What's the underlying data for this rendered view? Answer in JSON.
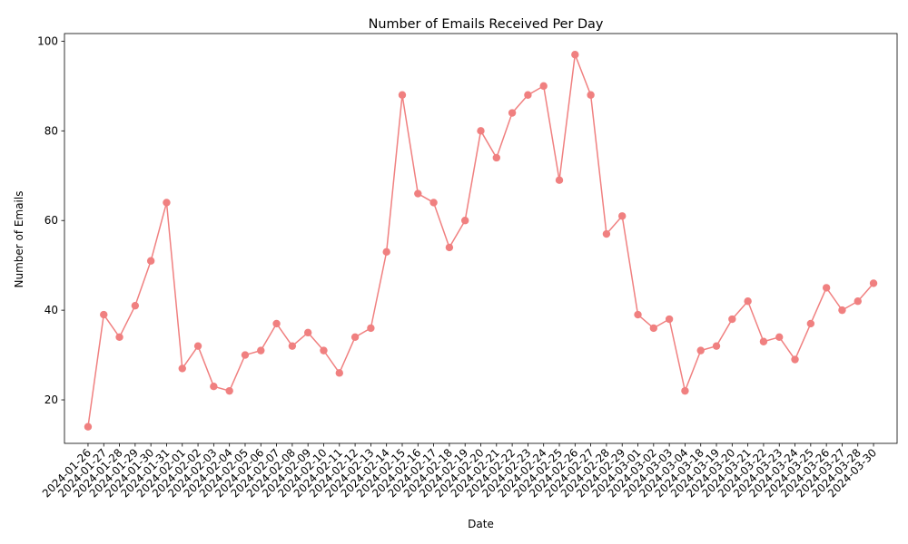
{
  "chart_data": {
    "type": "line",
    "title": "Number of Emails Received Per Day",
    "xlabel": "Date",
    "ylabel": "Number of Emails",
    "ylim": [
      10.3,
      101.7
    ],
    "yticks": [
      20,
      40,
      60,
      80,
      100
    ],
    "grid": false,
    "color": "#F08080",
    "categories": [
      "2024-01-26",
      "2024-01-27",
      "2024-01-28",
      "2024-01-29",
      "2024-01-30",
      "2024-01-31",
      "2024-02-01",
      "2024-02-02",
      "2024-02-03",
      "2024-02-04",
      "2024-02-05",
      "2024-02-06",
      "2024-02-07",
      "2024-02-08",
      "2024-02-09",
      "2024-02-10",
      "2024-02-11",
      "2024-02-12",
      "2024-02-13",
      "2024-02-14",
      "2024-02-15",
      "2024-02-16",
      "2024-02-17",
      "2024-02-18",
      "2024-02-19",
      "2024-02-20",
      "2024-02-21",
      "2024-02-22",
      "2024-02-23",
      "2024-02-24",
      "2024-02-25",
      "2024-02-26",
      "2024-02-27",
      "2024-02-28",
      "2024-02-29",
      "2024-03-01",
      "2024-03-02",
      "2024-03-03",
      "2024-03-04",
      "2024-03-18",
      "2024-03-19",
      "2024-03-20",
      "2024-03-21",
      "2024-03-22",
      "2024-03-23",
      "2024-03-24",
      "2024-03-25",
      "2024-03-26",
      "2024-03-27",
      "2024-03-28",
      "2024-03-30"
    ],
    "values": [
      14,
      39,
      34,
      41,
      51,
      64,
      27,
      32,
      23,
      22,
      30,
      31,
      37,
      32,
      35,
      31,
      26,
      34,
      36,
      53,
      88,
      66,
      64,
      54,
      60,
      80,
      74,
      84,
      88,
      90,
      69,
      97,
      88,
      57,
      61,
      39,
      36,
      38,
      22,
      31,
      32,
      38,
      42,
      33,
      34,
      29,
      37,
      45,
      40,
      42,
      46
    ]
  }
}
